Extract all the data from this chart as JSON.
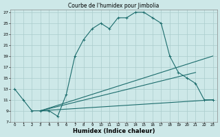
{
  "title": "Courbe de l'humidex pour Jimbolia",
  "xlabel": "Humidex (Indice chaleur)",
  "xlim": [
    -0.5,
    23.5
  ],
  "ylim": [
    7,
    27.5
  ],
  "xticks": [
    0,
    1,
    2,
    3,
    4,
    5,
    6,
    7,
    8,
    9,
    10,
    11,
    12,
    13,
    14,
    15,
    16,
    17,
    18,
    19,
    20,
    21,
    22,
    23
  ],
  "yticks": [
    7,
    9,
    11,
    13,
    15,
    17,
    19,
    21,
    23,
    25,
    27
  ],
  "bg_color": "#cde8e8",
  "line_color": "#1a6b6b",
  "grid_color": "#aacccc",
  "line1_x": [
    0,
    1,
    2,
    3,
    4,
    5,
    6,
    7,
    8,
    9,
    10,
    11,
    12,
    13,
    14,
    15,
    16,
    17,
    18,
    19,
    20,
    21,
    22,
    23
  ],
  "line1_y": [
    13,
    11,
    9,
    9,
    9,
    8,
    12,
    19,
    22,
    24,
    25,
    24,
    26,
    26,
    27,
    27,
    26,
    25,
    19,
    16,
    15,
    14,
    11,
    11
  ],
  "line2_x": [
    3,
    23
  ],
  "line2_y": [
    9,
    11
  ],
  "line3_x": [
    3,
    23
  ],
  "line3_y": [
    9,
    19
  ],
  "line4_x": [
    3,
    21
  ],
  "line4_y": [
    9,
    16
  ]
}
